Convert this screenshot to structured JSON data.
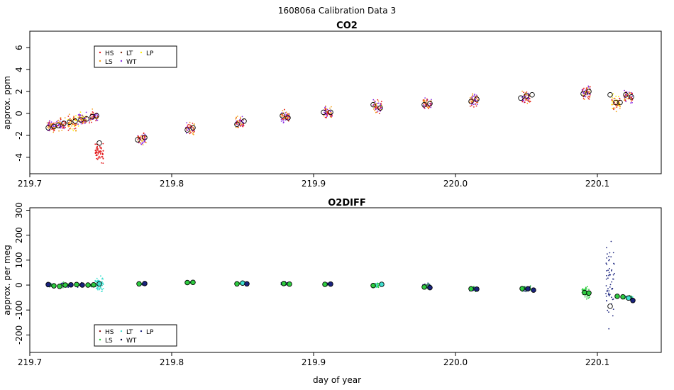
{
  "page_title": "160806a   Calibration Data 3",
  "chart_data": [
    {
      "type": "scatter",
      "title": "CO2",
      "xlabel": "",
      "ylabel": "approx. ppm",
      "xlim": [
        219.7,
        220.145
      ],
      "ylim": [
        -5.5,
        7.5
      ],
      "xticks": [
        219.7,
        219.8,
        219.9,
        220.0,
        220.1
      ],
      "xtick_labels": [
        "219.7",
        "219.8",
        "219.9",
        "220.0",
        "220.1"
      ],
      "yticks": [
        -4,
        -2,
        0,
        2,
        4,
        6
      ],
      "ytick_labels": [
        "-4",
        "-2",
        "0",
        "2",
        "4",
        "6"
      ],
      "legend": {
        "position": "top-left",
        "entries": [
          {
            "label": "HS",
            "color": "#e31a1c"
          },
          {
            "label": "LT",
            "color": "#7a2e10"
          },
          {
            "label": "LP",
            "color": "#ffee00"
          },
          {
            "label": "LS",
            "color": "#f4a11c"
          },
          {
            "label": "WT",
            "color": "#8a2be2"
          }
        ]
      },
      "clusters": [
        {
          "x": 219.715,
          "y": -1.2,
          "spread": 0.8,
          "colors": [
            "#e31a1c",
            "#f4a11c",
            "#8a2be2"
          ]
        },
        {
          "x": 219.722,
          "y": -1.0,
          "spread": 0.9,
          "colors": [
            "#e31a1c",
            "#f4a11c",
            "#8a2be2"
          ]
        },
        {
          "x": 219.73,
          "y": -0.8,
          "spread": 1.2,
          "colors": [
            "#ffee00",
            "#f4a11c",
            "#e31a1c"
          ]
        },
        {
          "x": 219.737,
          "y": -0.5,
          "spread": 1.0,
          "colors": [
            "#8a2be2",
            "#e31a1c",
            "#ffee00"
          ]
        },
        {
          "x": 219.745,
          "y": -0.3,
          "spread": 0.9,
          "colors": [
            "#e31a1c",
            "#f4a11c",
            "#8a2be2"
          ]
        },
        {
          "x": 219.749,
          "y": -3.5,
          "spread": 1.4,
          "colors": [
            "#e31a1c"
          ]
        },
        {
          "x": 219.779,
          "y": -2.3,
          "spread": 0.9,
          "colors": [
            "#e31a1c",
            "#f4a11c",
            "#8a2be2"
          ]
        },
        {
          "x": 219.813,
          "y": -1.4,
          "spread": 0.9,
          "colors": [
            "#e31a1c",
            "#f4a11c",
            "#8a2be2"
          ]
        },
        {
          "x": 219.848,
          "y": -0.9,
          "spread": 0.9,
          "colors": [
            "#e31a1c",
            "#f4a11c",
            "#8a2be2"
          ]
        },
        {
          "x": 219.88,
          "y": -0.3,
          "spread": 0.9,
          "colors": [
            "#e31a1c",
            "#f4a11c",
            "#8a2be2"
          ]
        },
        {
          "x": 219.91,
          "y": 0.1,
          "spread": 0.9,
          "colors": [
            "#e31a1c",
            "#f4a11c",
            "#8a2be2"
          ]
        },
        {
          "x": 219.945,
          "y": 0.6,
          "spread": 0.9,
          "colors": [
            "#e31a1c",
            "#f4a11c",
            "#8a2be2"
          ]
        },
        {
          "x": 219.98,
          "y": 0.9,
          "spread": 0.8,
          "colors": [
            "#e31a1c",
            "#f4a11c",
            "#8a2be2"
          ]
        },
        {
          "x": 220.013,
          "y": 1.2,
          "spread": 0.9,
          "colors": [
            "#e31a1c",
            "#f4a11c",
            "#8a2be2"
          ]
        },
        {
          "x": 220.05,
          "y": 1.5,
          "spread": 1.0,
          "colors": [
            "#e31a1c",
            "#f4a11c",
            "#8a2be2"
          ]
        },
        {
          "x": 220.092,
          "y": 1.9,
          "spread": 1.2,
          "colors": [
            "#e31a1c",
            "#f4a11c",
            "#8a2be2"
          ]
        },
        {
          "x": 220.113,
          "y": 1.0,
          "spread": 1.4,
          "colors": [
            "#ffee00",
            "#f4a11c",
            "#e31a1c"
          ]
        },
        {
          "x": 220.122,
          "y": 1.5,
          "spread": 0.9,
          "colors": [
            "#e31a1c",
            "#8a2be2",
            "#f4a11c"
          ]
        }
      ],
      "markers": [
        {
          "x": 219.713,
          "y": -1.3
        },
        {
          "x": 219.717,
          "y": -1.2
        },
        {
          "x": 219.72,
          "y": -1.1
        },
        {
          "x": 219.724,
          "y": -0.9
        },
        {
          "x": 219.728,
          "y": -0.8
        },
        {
          "x": 219.732,
          "y": -0.7
        },
        {
          "x": 219.736,
          "y": -0.6
        },
        {
          "x": 219.74,
          "y": -0.5
        },
        {
          "x": 219.744,
          "y": -0.3
        },
        {
          "x": 219.747,
          "y": -0.2
        },
        {
          "x": 219.749,
          "y": -2.7
        },
        {
          "x": 219.776,
          "y": -2.4
        },
        {
          "x": 219.781,
          "y": -2.2
        },
        {
          "x": 219.811,
          "y": -1.5
        },
        {
          "x": 219.815,
          "y": -1.3
        },
        {
          "x": 219.846,
          "y": -1.0
        },
        {
          "x": 219.851,
          "y": -0.7
        },
        {
          "x": 219.878,
          "y": -0.2
        },
        {
          "x": 219.882,
          "y": -0.4
        },
        {
          "x": 219.907,
          "y": 0.1
        },
        {
          "x": 219.912,
          "y": 0.1
        },
        {
          "x": 219.942,
          "y": 0.8
        },
        {
          "x": 219.947,
          "y": 0.5
        },
        {
          "x": 219.978,
          "y": 0.8
        },
        {
          "x": 219.982,
          "y": 0.9
        },
        {
          "x": 220.011,
          "y": 1.1
        },
        {
          "x": 220.015,
          "y": 1.3
        },
        {
          "x": 220.046,
          "y": 1.4
        },
        {
          "x": 220.05,
          "y": 1.6
        },
        {
          "x": 220.054,
          "y": 1.7
        },
        {
          "x": 220.09,
          "y": 1.8
        },
        {
          "x": 220.094,
          "y": 2.0
        },
        {
          "x": 220.109,
          "y": 1.7
        },
        {
          "x": 220.113,
          "y": 1.0
        },
        {
          "x": 220.116,
          "y": 1.0
        },
        {
          "x": 220.12,
          "y": 1.7
        },
        {
          "x": 220.124,
          "y": 1.5
        }
      ]
    },
    {
      "type": "scatter",
      "title": "O2DIFF",
      "xlabel": "day of year",
      "ylabel": "approx. per meg",
      "xlim": [
        219.7,
        220.145
      ],
      "ylim": [
        -270,
        310
      ],
      "xticks": [
        219.7,
        219.8,
        219.9,
        220.0,
        220.1
      ],
      "xtick_labels": [
        "219.7",
        "219.8",
        "219.9",
        "220.0",
        "220.1"
      ],
      "yticks": [
        -200,
        -100,
        0,
        100,
        200,
        300
      ],
      "ytick_labels": [
        "-200",
        "-100",
        "0",
        "100",
        "200",
        "300"
      ],
      "legend": {
        "position": "bottom-left",
        "entries": [
          {
            "label": "HS",
            "color": "#8b1a1a"
          },
          {
            "label": "LT",
            "color": "#40e0d0"
          },
          {
            "label": "LP",
            "color": "#1a237e"
          },
          {
            "label": "LS",
            "color": "#2ecc40"
          },
          {
            "label": "WT",
            "color": "#000033"
          }
        ]
      },
      "clusters": [
        {
          "x": 219.715,
          "y": 0,
          "spread": 12,
          "colors": [
            "#1a237e",
            "#2ecc40"
          ]
        },
        {
          "x": 219.725,
          "y": 0,
          "spread": 14,
          "colors": [
            "#1a237e",
            "#2ecc40"
          ]
        },
        {
          "x": 219.735,
          "y": 0,
          "spread": 12,
          "colors": [
            "#1a237e",
            "#2ecc40"
          ]
        },
        {
          "x": 219.745,
          "y": 0,
          "spread": 10,
          "colors": [
            "#1a237e",
            "#2ecc40"
          ]
        },
        {
          "x": 219.749,
          "y": 5,
          "spread": 45,
          "colors": [
            "#40e0d0"
          ]
        },
        {
          "x": 219.779,
          "y": 5,
          "spread": 8,
          "colors": [
            "#2ecc40",
            "#1a237e"
          ]
        },
        {
          "x": 219.813,
          "y": 10,
          "spread": 8,
          "colors": [
            "#2ecc40",
            "#1a237e"
          ]
        },
        {
          "x": 219.848,
          "y": 5,
          "spread": 8,
          "colors": [
            "#2ecc40",
            "#1a237e"
          ]
        },
        {
          "x": 219.88,
          "y": 5,
          "spread": 10,
          "colors": [
            "#2ecc40",
            "#1a237e"
          ]
        },
        {
          "x": 219.91,
          "y": 3,
          "spread": 9,
          "colors": [
            "#2ecc40",
            "#1a237e"
          ]
        },
        {
          "x": 219.945,
          "y": 0,
          "spread": 14,
          "colors": [
            "#2ecc40",
            "#40e0d0"
          ]
        },
        {
          "x": 219.98,
          "y": -5,
          "spread": 22,
          "colors": [
            "#1a237e",
            "#2ecc40"
          ]
        },
        {
          "x": 220.013,
          "y": -15,
          "spread": 15,
          "colors": [
            "#2ecc40",
            "#1a237e"
          ]
        },
        {
          "x": 220.05,
          "y": -15,
          "spread": 18,
          "colors": [
            "#2ecc40",
            "#1a237e"
          ]
        },
        {
          "x": 220.092,
          "y": -30,
          "spread": 40,
          "colors": [
            "#2ecc40"
          ]
        },
        {
          "x": 220.109,
          "y": 30,
          "spread": 270,
          "colors": [
            "#1a237e"
          ]
        },
        {
          "x": 220.122,
          "y": -50,
          "spread": 10,
          "colors": [
            "#2ecc40",
            "#1a237e",
            "#40e0d0"
          ]
        }
      ],
      "markers": [
        {
          "x": 219.713,
          "y": 2,
          "fill": "#1a237e"
        },
        {
          "x": 219.717,
          "y": -3,
          "fill": "#2ecc40"
        },
        {
          "x": 219.721,
          "y": -5,
          "fill": "#2ecc40"
        },
        {
          "x": 219.725,
          "y": 0,
          "fill": "#2ecc40"
        },
        {
          "x": 219.729,
          "y": 1,
          "fill": "#1a237e"
        },
        {
          "x": 219.733,
          "y": 2,
          "fill": "#2ecc40"
        },
        {
          "x": 219.737,
          "y": 0,
          "fill": "#1a237e"
        },
        {
          "x": 219.741,
          "y": 0,
          "fill": "#2ecc40"
        },
        {
          "x": 219.745,
          "y": 1,
          "fill": "#2ecc40"
        },
        {
          "x": 219.749,
          "y": 5,
          "fill": "#40e0d0"
        },
        {
          "x": 219.777,
          "y": 5,
          "fill": "#2ecc40"
        },
        {
          "x": 219.781,
          "y": 6,
          "fill": "#1a237e"
        },
        {
          "x": 219.811,
          "y": 10,
          "fill": "#2ecc40"
        },
        {
          "x": 219.815,
          "y": 11,
          "fill": "#2ecc40"
        },
        {
          "x": 219.846,
          "y": 5,
          "fill": "#2ecc40"
        },
        {
          "x": 219.85,
          "y": 8,
          "fill": "#40e0d0"
        },
        {
          "x": 219.853,
          "y": 5,
          "fill": "#1a237e"
        },
        {
          "x": 219.879,
          "y": 6,
          "fill": "#2ecc40"
        },
        {
          "x": 219.883,
          "y": 4,
          "fill": "#2ecc40"
        },
        {
          "x": 219.908,
          "y": 3,
          "fill": "#2ecc40"
        },
        {
          "x": 219.912,
          "y": 4,
          "fill": "#1a237e"
        },
        {
          "x": 219.942,
          "y": -2,
          "fill": "#2ecc40"
        },
        {
          "x": 219.948,
          "y": 3,
          "fill": "#40e0d0"
        },
        {
          "x": 219.978,
          "y": -8,
          "fill": "#2ecc40"
        },
        {
          "x": 219.982,
          "y": -10,
          "fill": "#1a237e"
        },
        {
          "x": 220.011,
          "y": -15,
          "fill": "#2ecc40"
        },
        {
          "x": 220.015,
          "y": -16,
          "fill": "#1a237e"
        },
        {
          "x": 220.047,
          "y": -14,
          "fill": "#2ecc40"
        },
        {
          "x": 220.051,
          "y": -15,
          "fill": "#1a237e"
        },
        {
          "x": 220.055,
          "y": -20,
          "fill": "#1a237e"
        },
        {
          "x": 220.091,
          "y": -30,
          "fill": "#2ecc40"
        },
        {
          "x": 220.094,
          "y": -32,
          "fill": "#2ecc40"
        },
        {
          "x": 220.109,
          "y": -85,
          "fill": "#ffffff"
        },
        {
          "x": 220.114,
          "y": -45,
          "fill": "#2ecc40"
        },
        {
          "x": 220.118,
          "y": -47,
          "fill": "#2ecc40"
        },
        {
          "x": 220.122,
          "y": -52,
          "fill": "#40e0d0"
        },
        {
          "x": 220.125,
          "y": -62,
          "fill": "#1a237e"
        }
      ]
    }
  ]
}
